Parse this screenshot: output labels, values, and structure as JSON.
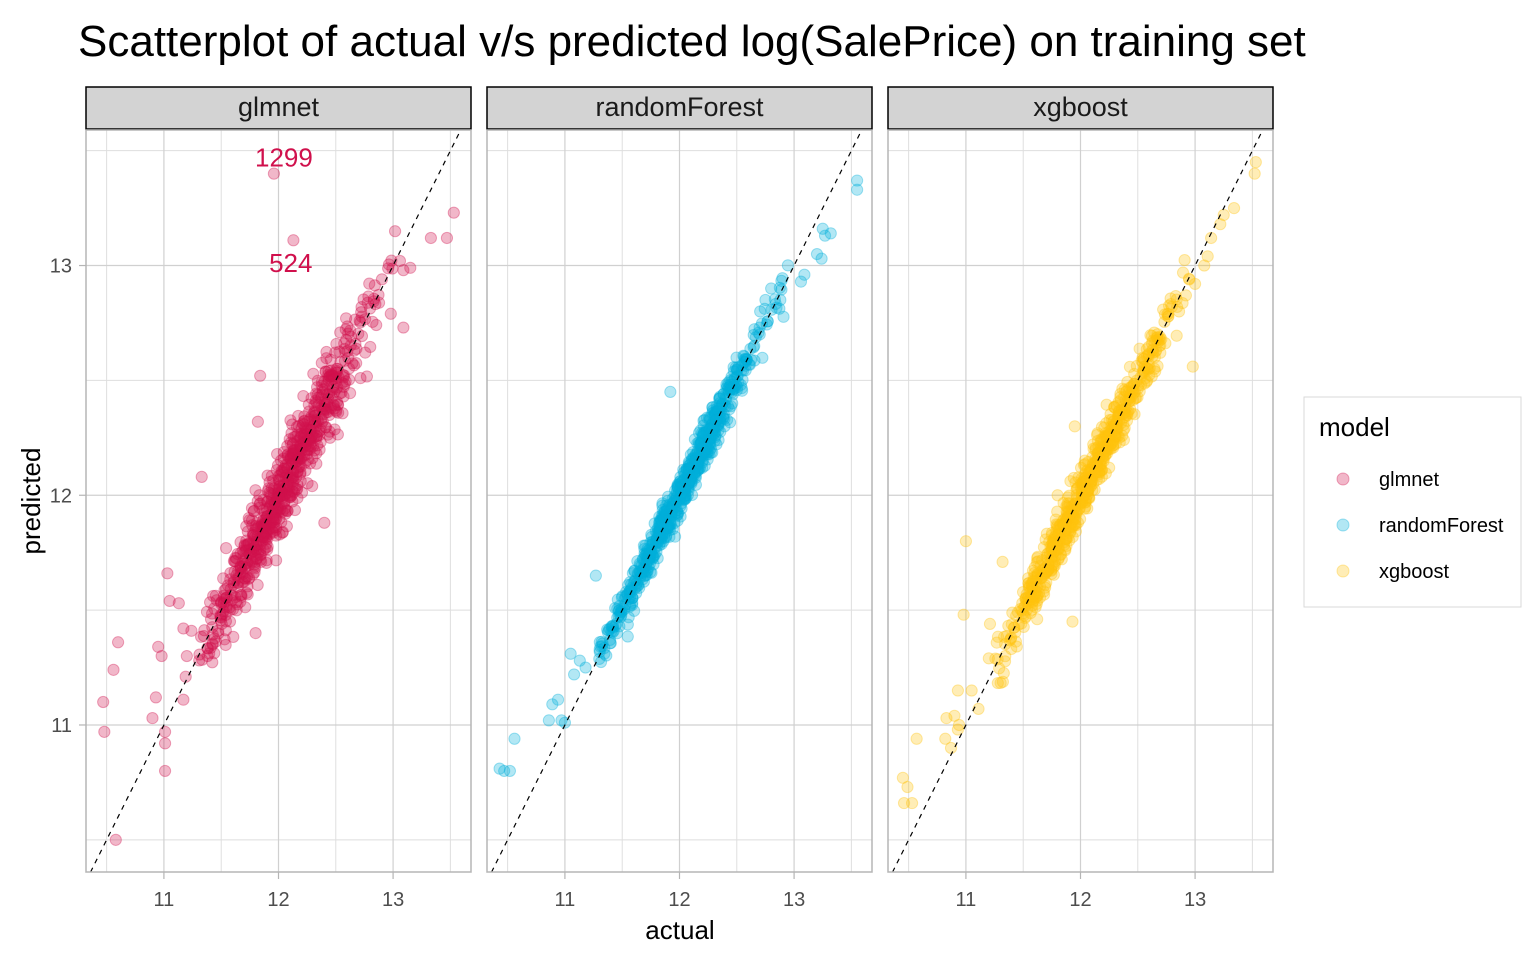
{
  "chart_data": {
    "type": "scatter",
    "title": "Scatterplot of actual v/s predicted log(SalePrice) on training set",
    "xlabel": "actual",
    "ylabel": "predicted",
    "xlim": [
      10.32,
      13.68
    ],
    "ylim": [
      10.36,
      13.59
    ],
    "x_ticks": [
      11,
      12,
      13
    ],
    "y_ticks": [
      11,
      12,
      13
    ],
    "x_tick_labels": [
      "11",
      "12",
      "13"
    ],
    "y_tick_labels": [
      "11",
      "12",
      "13"
    ],
    "grid": true,
    "reference_line": {
      "style": "dashed",
      "slope": 1,
      "intercept": 0
    },
    "legend": {
      "title": "model",
      "placement": "right",
      "entries": [
        "glmnet",
        "randomForest",
        "xgboost"
      ]
    },
    "facets": [
      {
        "name": "glmnet",
        "color": "#D0104C",
        "cloud": {
          "n": 700,
          "x_center": 12.02,
          "x_sd": 0.38,
          "x_min": 11.3,
          "x_max": 13.05,
          "resid_sd": 0.09,
          "seed": 11
        },
        "outliers": [
          [
            11.96,
            13.4
          ],
          [
            12.13,
            13.11
          ],
          [
            13.53,
            13.23
          ],
          [
            13.47,
            13.12
          ],
          [
            13.33,
            13.12
          ],
          [
            13.06,
            13.02
          ],
          [
            13.09,
            12.98
          ],
          [
            13.15,
            12.99
          ],
          [
            12.98,
            12.79
          ],
          [
            13.09,
            12.73
          ],
          [
            12.59,
            12.77
          ],
          [
            11.84,
            12.52
          ],
          [
            11.82,
            12.32
          ],
          [
            11.33,
            12.08
          ],
          [
            10.47,
            11.1
          ],
          [
            10.48,
            10.97
          ],
          [
            10.56,
            11.24
          ],
          [
            10.6,
            11.36
          ],
          [
            10.9,
            11.03
          ],
          [
            10.93,
            11.12
          ],
          [
            10.95,
            11.34
          ],
          [
            10.98,
            11.3
          ],
          [
            11.01,
            10.97
          ],
          [
            11.01,
            10.92
          ],
          [
            11.01,
            10.8
          ],
          [
            11.03,
            11.66
          ],
          [
            11.05,
            11.54
          ],
          [
            11.13,
            11.53
          ],
          [
            11.17,
            11.42
          ],
          [
            11.24,
            11.41
          ],
          [
            11.2,
            11.3
          ],
          [
            11.19,
            11.21
          ],
          [
            11.17,
            11.11
          ],
          [
            10.58,
            10.5
          ],
          [
            11.8,
            11.4
          ],
          [
            12.4,
            11.88
          ],
          [
            12.5,
            12.37
          ],
          [
            12.45,
            12.25
          ]
        ],
        "labels": [
          {
            "text": "1299",
            "x": 11.96,
            "y": 13.47
          },
          {
            "text": "524",
            "x": 12.02,
            "y": 13.01
          }
        ]
      },
      {
        "name": "randomForest",
        "color": "#00AEDB",
        "cloud": {
          "n": 700,
          "x_center": 12.02,
          "x_sd": 0.36,
          "x_min": 11.3,
          "x_max": 12.95,
          "resid_sd": 0.045,
          "seed": 23
        },
        "outliers": [
          [
            13.55,
            13.37
          ],
          [
            13.55,
            13.33
          ],
          [
            13.32,
            13.14
          ],
          [
            13.27,
            13.13
          ],
          [
            13.25,
            13.16
          ],
          [
            13.24,
            13.03
          ],
          [
            13.2,
            13.05
          ],
          [
            13.09,
            12.96
          ],
          [
            13.06,
            12.93
          ],
          [
            12.88,
            12.85
          ],
          [
            12.8,
            12.9
          ],
          [
            12.75,
            12.85
          ],
          [
            12.7,
            12.7
          ],
          [
            10.43,
            10.81
          ],
          [
            10.47,
            10.8
          ],
          [
            10.52,
            10.8
          ],
          [
            10.56,
            10.94
          ],
          [
            10.86,
            11.02
          ],
          [
            10.89,
            11.09
          ],
          [
            10.94,
            11.11
          ],
          [
            10.97,
            11.02
          ],
          [
            11.0,
            11.01
          ],
          [
            11.05,
            11.31
          ],
          [
            11.08,
            11.22
          ],
          [
            11.13,
            11.28
          ],
          [
            11.18,
            11.25
          ],
          [
            11.27,
            11.65
          ],
          [
            11.92,
            12.45
          ],
          [
            12.46,
            12.4
          ]
        ],
        "labels": []
      },
      {
        "name": "xgboost",
        "color": "#FFC20E",
        "cloud": {
          "n": 700,
          "x_center": 12.02,
          "x_sd": 0.36,
          "x_min": 11.25,
          "x_max": 12.95,
          "resid_sd": 0.055,
          "seed": 37
        },
        "outliers": [
          [
            13.53,
            13.45
          ],
          [
            13.52,
            13.4
          ],
          [
            13.34,
            13.25
          ],
          [
            13.25,
            13.22
          ],
          [
            13.22,
            13.18
          ],
          [
            13.14,
            13.12
          ],
          [
            13.11,
            13.04
          ],
          [
            13.08,
            13.0
          ],
          [
            13.0,
            12.92
          ],
          [
            12.92,
            12.87
          ],
          [
            12.98,
            12.56
          ],
          [
            12.86,
            12.8
          ],
          [
            10.45,
            10.77
          ],
          [
            10.49,
            10.73
          ],
          [
            10.46,
            10.66
          ],
          [
            10.53,
            10.66
          ],
          [
            10.57,
            10.94
          ],
          [
            10.82,
            10.94
          ],
          [
            10.83,
            11.03
          ],
          [
            10.87,
            10.9
          ],
          [
            10.9,
            11.04
          ],
          [
            10.93,
            10.98
          ],
          [
            10.93,
            11.15
          ],
          [
            10.94,
            11.0
          ],
          [
            10.98,
            11.48
          ],
          [
            11.05,
            11.15
          ],
          [
            11.11,
            11.07
          ],
          [
            11.2,
            11.29
          ],
          [
            11.21,
            11.44
          ],
          [
            11.32,
            11.71
          ],
          [
            11.0,
            11.8
          ],
          [
            11.93,
            11.45
          ],
          [
            11.8,
            12.0
          ],
          [
            11.95,
            12.3
          ],
          [
            12.25,
            12.12
          ]
        ],
        "labels": []
      }
    ]
  }
}
